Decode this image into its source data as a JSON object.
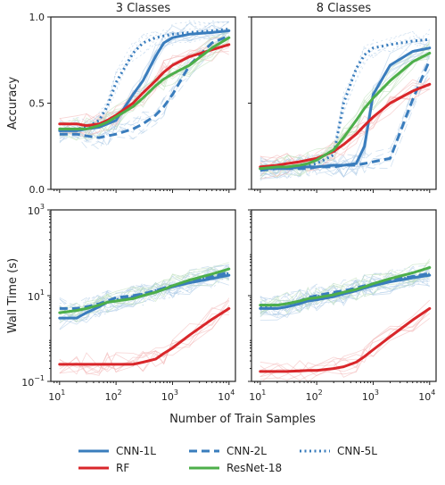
{
  "chart_data": {
    "type": "line",
    "xlabel": "Number of Train Samples",
    "xscale": "log",
    "xlim": [
      7,
      13000
    ],
    "xticks": [
      {
        "value": 10,
        "base": "10",
        "exp": "1"
      },
      {
        "value": 100,
        "base": "10",
        "exp": "2"
      },
      {
        "value": 1000,
        "base": "10",
        "exp": "3"
      },
      {
        "value": 10000,
        "base": "10",
        "exp": "4"
      }
    ],
    "colors": {
      "cnn": "#3a7dbd",
      "rf": "#d9262a",
      "resnet": "#4daf4a",
      "noise": "#a9c8e6"
    },
    "legend": {
      "placement": "bottom",
      "entries": [
        {
          "label": "CNN-1L",
          "color": "#3a7dbd",
          "style": "solid"
        },
        {
          "label": "CNN-2L",
          "color": "#3a7dbd",
          "style": "dashed"
        },
        {
          "label": "CNN-5L",
          "color": "#3a7dbd",
          "style": "dotted"
        },
        {
          "label": "RF",
          "color": "#d9262a",
          "style": "solid"
        },
        {
          "label": "ResNet-18",
          "color": "#4daf4a",
          "style": "solid"
        }
      ]
    },
    "x": [
      10,
      20,
      30,
      50,
      70,
      100,
      200,
      300,
      500,
      700,
      1000,
      2000,
      5000,
      10000
    ],
    "panels": [
      {
        "title": "3 Classes",
        "ylabel": "Accuracy",
        "yscale": "linear",
        "ylim": [
          0,
          1.0
        ],
        "yticks": [
          {
            "value": 0.0,
            "label": "0.0"
          },
          {
            "value": 0.5,
            "label": "0.5"
          },
          {
            "value": 1.0,
            "label": "1.0"
          }
        ],
        "series": [
          {
            "name": "CNN-1L",
            "values": [
              0.34,
              0.34,
              0.35,
              0.36,
              0.38,
              0.4,
              0.55,
              0.63,
              0.77,
              0.85,
              0.88,
              0.9,
              0.91,
              0.92
            ]
          },
          {
            "name": "CNN-2L",
            "values": [
              0.32,
              0.32,
              0.31,
              0.3,
              0.31,
              0.32,
              0.35,
              0.38,
              0.43,
              0.48,
              0.55,
              0.72,
              0.85,
              0.89
            ]
          },
          {
            "name": "CNN-5L",
            "values": [
              0.34,
              0.35,
              0.36,
              0.4,
              0.48,
              0.62,
              0.79,
              0.85,
              0.88,
              0.89,
              0.9,
              0.91,
              0.92,
              0.93
            ]
          },
          {
            "name": "RF",
            "values": [
              0.38,
              0.38,
              0.37,
              0.38,
              0.4,
              0.43,
              0.5,
              0.56,
              0.63,
              0.68,
              0.72,
              0.77,
              0.81,
              0.84
            ]
          },
          {
            "name": "ResNet-18",
            "values": [
              0.35,
              0.35,
              0.35,
              0.37,
              0.39,
              0.42,
              0.48,
              0.53,
              0.6,
              0.64,
              0.67,
              0.72,
              0.82,
              0.88
            ]
          }
        ]
      },
      {
        "title": "8 Classes",
        "ylabel": "",
        "yscale": "linear",
        "ylim": [
          0,
          1.0
        ],
        "yticks": [
          {
            "value": 0.0,
            "label": ""
          },
          {
            "value": 0.5,
            "label": ""
          },
          {
            "value": 1.0,
            "label": ""
          }
        ],
        "series": [
          {
            "name": "CNN-1L",
            "values": [
              0.12,
              0.12,
              0.12,
              0.13,
              0.13,
              0.13,
              0.14,
              0.14,
              0.15,
              0.25,
              0.55,
              0.72,
              0.8,
              0.82
            ]
          },
          {
            "name": "CNN-2L",
            "values": [
              0.11,
              0.12,
              0.12,
              0.12,
              0.12,
              0.13,
              0.13,
              0.14,
              0.14,
              0.15,
              0.16,
              0.18,
              0.52,
              0.75
            ]
          },
          {
            "name": "CNN-5L",
            "values": [
              0.12,
              0.12,
              0.13,
              0.13,
              0.14,
              0.15,
              0.2,
              0.5,
              0.7,
              0.78,
              0.82,
              0.84,
              0.86,
              0.87
            ]
          },
          {
            "name": "RF",
            "values": [
              0.13,
              0.14,
              0.15,
              0.16,
              0.17,
              0.18,
              0.22,
              0.26,
              0.32,
              0.37,
              0.42,
              0.5,
              0.57,
              0.61
            ]
          },
          {
            "name": "ResNet-18",
            "values": [
              0.12,
              0.13,
              0.13,
              0.14,
              0.15,
              0.17,
              0.23,
              0.3,
              0.4,
              0.47,
              0.53,
              0.63,
              0.74,
              0.79
            ]
          }
        ]
      },
      {
        "title": "",
        "ylabel": "Wall Time (s)",
        "yscale": "log",
        "ylim": [
          0.1,
          1000
        ],
        "yticks": [
          {
            "value": 0.1,
            "base": "10",
            "exp": "−1"
          },
          {
            "value": 10,
            "base": "10",
            "exp": "1"
          },
          {
            "value": 1000,
            "base": "10",
            "exp": "3"
          }
        ],
        "series": [
          {
            "name": "CNN-1L",
            "values": [
              3.0,
              3.0,
              4.0,
              5.5,
              7.0,
              7.5,
              9.0,
              10.0,
              12.0,
              14.0,
              16.0,
              20.0,
              25.0,
              30.0
            ]
          },
          {
            "name": "CNN-2L",
            "values": [
              5.0,
              5.0,
              5.5,
              6.5,
              7.5,
              9.0,
              10.0,
              11.0,
              13.0,
              15.0,
              17.0,
              22.0,
              28.0,
              35.0
            ]
          },
          {
            "name": "CNN-5L",
            "values": [
              4.0,
              4.5,
              5.0,
              6.0,
              7.0,
              8.0,
              9.5,
              11.0,
              13.0,
              15.0,
              17.0,
              21.0,
              27.0,
              33.0
            ]
          },
          {
            "name": "RF",
            "values": [
              0.25,
              0.25,
              0.25,
              0.25,
              0.25,
              0.25,
              0.25,
              0.28,
              0.33,
              0.45,
              0.6,
              1.2,
              2.8,
              5.0
            ]
          },
          {
            "name": "ResNet-18",
            "values": [
              4.0,
              4.5,
              5.0,
              6.0,
              7.0,
              7.5,
              8.5,
              10.0,
              12.0,
              14.0,
              17.0,
              23.0,
              32.0,
              42.0
            ]
          }
        ]
      },
      {
        "title": "",
        "ylabel": "",
        "yscale": "log",
        "ylim": [
          0.1,
          1000
        ],
        "yticks": [
          {
            "value": 0.1,
            "base": "",
            "exp": ""
          },
          {
            "value": 10,
            "base": "",
            "exp": ""
          },
          {
            "value": 1000,
            "base": "",
            "exp": ""
          }
        ],
        "series": [
          {
            "name": "CNN-1L",
            "values": [
              5.0,
              5.0,
              5.5,
              6.5,
              7.5,
              8.0,
              9.5,
              11.0,
              13.0,
              15.0,
              17.0,
              21.0,
              26.0,
              30.0
            ]
          },
          {
            "name": "CNN-2L",
            "values": [
              6.0,
              6.0,
              6.5,
              7.5,
              9.0,
              10.0,
              12.0,
              13.0,
              15.0,
              17.0,
              19.0,
              23.0,
              28.0,
              33.0
            ]
          },
          {
            "name": "CNN-5L",
            "values": [
              5.5,
              6.0,
              6.5,
              7.0,
              8.5,
              9.5,
              11.0,
              12.0,
              14.0,
              16.0,
              18.0,
              22.0,
              27.0,
              32.0
            ]
          },
          {
            "name": "RF",
            "values": [
              0.17,
              0.17,
              0.17,
              0.175,
              0.18,
              0.18,
              0.2,
              0.22,
              0.28,
              0.38,
              0.55,
              1.1,
              2.7,
              5.0
            ]
          },
          {
            "name": "ResNet-18",
            "values": [
              6.0,
              6.0,
              6.5,
              7.5,
              8.5,
              9.0,
              10.5,
              12.0,
              14.0,
              16.0,
              19.0,
              25.0,
              34.0,
              45.0
            ]
          }
        ]
      }
    ]
  }
}
